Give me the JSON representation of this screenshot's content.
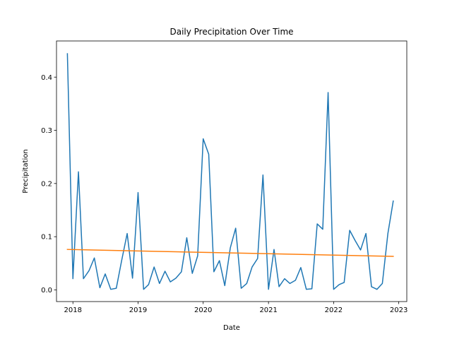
{
  "chart_data": {
    "type": "line",
    "title": "Daily Precipitation Over Time",
    "xlabel": "Date",
    "ylabel": "Precipitation",
    "xlim": [
      "2017-10-01",
      "2023-02-15"
    ],
    "ylim": [
      -0.022,
      0.468
    ],
    "x_ticks": [
      "2018",
      "2019",
      "2020",
      "2021",
      "2022",
      "2023"
    ],
    "y_ticks": [
      "0.0",
      "0.1",
      "0.2",
      "0.3",
      "0.4"
    ],
    "grid": false,
    "legend": false,
    "series": [
      {
        "color": "#1f77b4",
        "x": [
          "2017-12",
          "2018-01",
          "2018-02",
          "2018-03",
          "2018-04",
          "2018-05",
          "2018-06",
          "2018-07",
          "2018-08",
          "2018-09",
          "2018-10",
          "2018-11",
          "2018-12",
          "2019-01",
          "2019-02",
          "2019-03",
          "2019-04",
          "2019-05",
          "2019-06",
          "2019-07",
          "2019-08",
          "2019-09",
          "2019-10",
          "2019-11",
          "2019-12",
          "2020-01",
          "2020-02",
          "2020-03",
          "2020-04",
          "2020-05",
          "2020-06",
          "2020-07",
          "2020-08",
          "2020-09",
          "2020-10",
          "2020-11",
          "2020-12",
          "2021-01",
          "2021-02",
          "2021-03",
          "2021-04",
          "2021-05",
          "2021-06",
          "2021-07",
          "2021-08",
          "2021-09",
          "2021-10",
          "2021-11",
          "2021-12",
          "2022-01",
          "2022-02",
          "2022-03",
          "2022-04",
          "2022-05",
          "2022-06",
          "2022-07",
          "2022-08",
          "2022-09",
          "2022-10",
          "2022-11",
          "2022-12"
        ],
        "values": [
          0.444,
          0.021,
          0.222,
          0.021,
          0.036,
          0.06,
          0.004,
          0.03,
          0.001,
          0.003,
          0.055,
          0.106,
          0.022,
          0.183,
          0.001,
          0.01,
          0.043,
          0.012,
          0.035,
          0.015,
          0.022,
          0.034,
          0.098,
          0.031,
          0.064,
          0.284,
          0.255,
          0.034,
          0.055,
          0.008,
          0.079,
          0.116,
          0.003,
          0.012,
          0.043,
          0.059,
          0.216,
          0.001,
          0.076,
          0.006,
          0.021,
          0.012,
          0.018,
          0.042,
          0.001,
          0.002,
          0.124,
          0.114,
          0.371,
          0.001,
          0.01,
          0.014,
          0.112,
          0.093,
          0.075,
          0.106,
          0.006,
          0.001,
          0.012,
          0.106,
          0.167
        ]
      },
      {
        "color": "#ff7f0e",
        "x": [
          "2017-12",
          "2022-12"
        ],
        "values": [
          0.076,
          0.063
        ]
      }
    ]
  }
}
